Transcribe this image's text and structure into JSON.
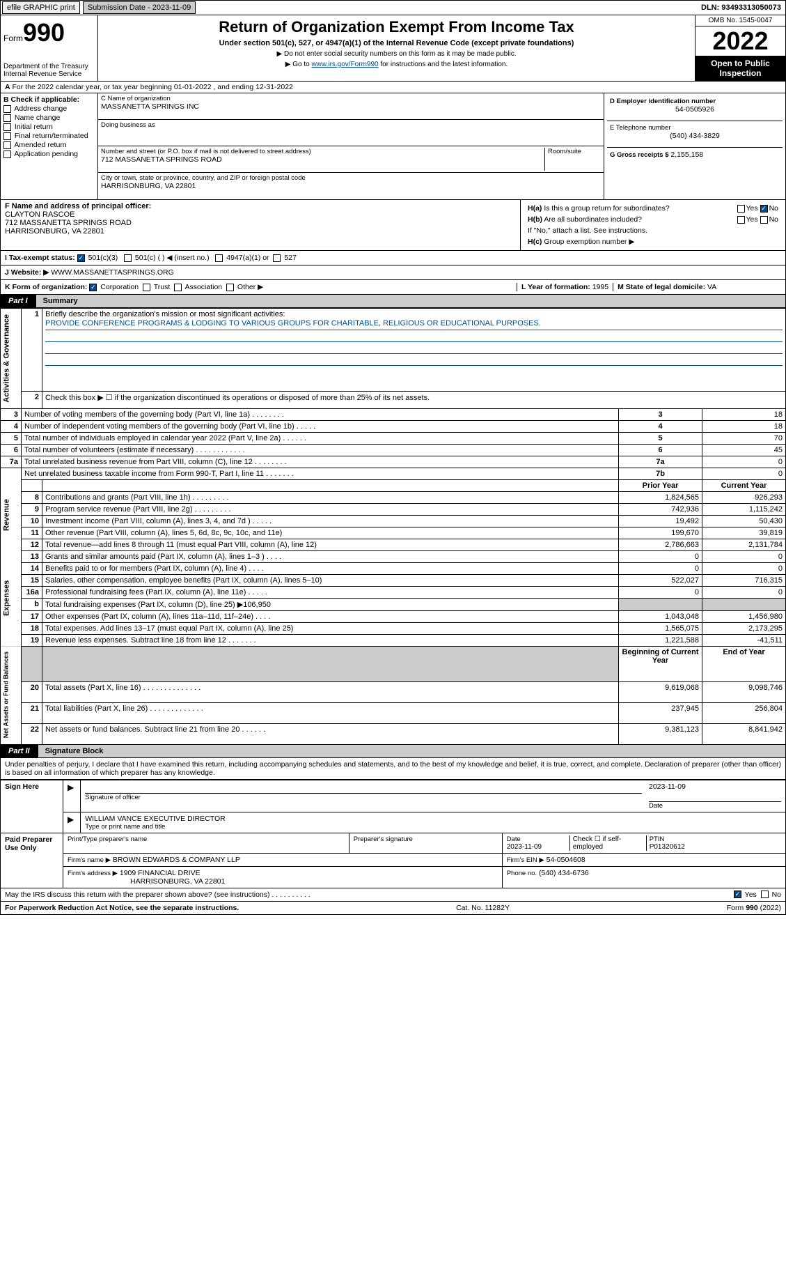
{
  "topbar": {
    "btn1": "efile GRAPHIC print",
    "sub_label": "Submission Date - 2023-11-09",
    "dln": "DLN: 93493313050073"
  },
  "header": {
    "form_label": "Form",
    "form_num": "990",
    "title": "Return of Organization Exempt From Income Tax",
    "sub": "Under section 501(c), 527, or 4947(a)(1) of the Internal Revenue Code (except private foundations)",
    "note1": "▶ Do not enter social security numbers on this form as it may be made public.",
    "note2_pre": "▶ Go to ",
    "note2_link": "www.irs.gov/Form990",
    "note2_post": " for instructions and the latest information.",
    "dept": "Department of the Treasury\nInternal Revenue Service",
    "omb": "OMB No. 1545-0047",
    "year": "2022",
    "inspect": "Open to Public Inspection"
  },
  "row_a": {
    "text": "For the 2022 calendar year, or tax year beginning 01-01-2022   , and ending 12-31-2022",
    "b_label": "B Check if applicable:",
    "b_items": [
      "Address change",
      "Name change",
      "Initial return",
      "Final return/terminated",
      "Amended return",
      "Application pending"
    ],
    "c_label": "C Name of organization",
    "c_name": "MASSANETTA SPRINGS INC",
    "dba_label": "Doing business as",
    "addr_label": "Number and street (or P.O. box if mail is not delivered to street address)",
    "room_label": "Room/suite",
    "addr": "712 MASSANETTA SPRINGS ROAD",
    "city_label": "City or town, state or province, country, and ZIP or foreign postal code",
    "city": "HARRISONBURG, VA  22801",
    "d_label": "D Employer identification number",
    "d_val": "54-0505926",
    "e_label": "E Telephone number",
    "e_val": "(540) 434-3829",
    "g_label": "G Gross receipts $",
    "g_val": "2,155,158"
  },
  "row_fh": {
    "f_label": "F  Name and address of principal officer:",
    "f_name": "CLAYTON RASCOE",
    "f_addr1": "712 MASSANETTA SPRINGS ROAD",
    "f_addr2": "HARRISONBURG, VA  22801",
    "ha_label": "H(a)  Is this a group return for subordinates?",
    "hb_label": "H(b)  Are all subordinates included?",
    "hb_note": "If \"No,\" attach a list. See instructions.",
    "hc_label": "H(c)  Group exemption number ▶",
    "yes": "Yes",
    "no": "No"
  },
  "row_i": {
    "label": "I   Tax-exempt status:",
    "opt1": "501(c)(3)",
    "opt2": "501(c) (  ) ◀ (insert no.)",
    "opt3": "4947(a)(1) or",
    "opt4": "527"
  },
  "row_j": {
    "label": "J   Website: ▶",
    "val": "WWW.MASSANETTASPRINGS.ORG"
  },
  "row_k": {
    "label": "K Form of organization:",
    "opts": [
      "Corporation",
      "Trust",
      "Association",
      "Other ▶"
    ],
    "l_label": "L Year of formation:",
    "l_val": "1995",
    "m_label": "M State of legal domicile:",
    "m_val": "VA"
  },
  "part1": {
    "tab": "Part I",
    "title": "Summary"
  },
  "summary": {
    "q1": "Briefly describe the organization's mission or most significant activities:",
    "mission": "PROVIDE CONFERENCE PROGRAMS & LODGING TO VARIOUS GROUPS FOR CHARITABLE, RELIGIOUS OR EDUCATIONAL PURPOSES.",
    "q2": "Check this box ▶ ☐  if the organization discontinued its operations or disposed of more than 25% of its net assets.",
    "rows_ag": [
      {
        "n": "3",
        "d": "Number of voting members of the governing body (Part VI, line 1a)  .    .    .    .    .    .    .    .",
        "b": "3",
        "v": "18"
      },
      {
        "n": "4",
        "d": "Number of independent voting members of the governing body (Part VI, line 1b)  .    .    .    .    .",
        "b": "4",
        "v": "18"
      },
      {
        "n": "5",
        "d": "Total number of individuals employed in calendar year 2022 (Part V, line 2a)  .    .    .    .    .    .",
        "b": "5",
        "v": "70"
      },
      {
        "n": "6",
        "d": "Total number of volunteers (estimate if necessary)  .    .    .    .    .    .    .    .    .    .    .    .",
        "b": "6",
        "v": "45"
      },
      {
        "n": "7a",
        "d": "Total unrelated business revenue from Part VIII, column (C), line 12  .    .    .    .    .    .    .    .",
        "b": "7a",
        "v": "0"
      },
      {
        "n": "",
        "d": "Net unrelated business taxable income from Form 990-T, Part I, line 11  .    .    .    .    .    .    .",
        "b": "7b",
        "v": "0"
      }
    ],
    "side_ag": "Activities & Governance",
    "hdr_prior": "Prior Year",
    "hdr_curr": "Current Year",
    "side_rev": "Revenue",
    "rows_rev": [
      {
        "n": "8",
        "d": "Contributions and grants (Part VIII, line 1h)  .    .    .    .    .    .    .    .    .",
        "p": "1,824,565",
        "c": "926,293"
      },
      {
        "n": "9",
        "d": "Program service revenue (Part VIII, line 2g)  .    .    .    .    .    .    .    .    .",
        "p": "742,936",
        "c": "1,115,242"
      },
      {
        "n": "10",
        "d": "Investment income (Part VIII, column (A), lines 3, 4, and 7d )  .    .    .    .    .",
        "p": "19,492",
        "c": "50,430"
      },
      {
        "n": "11",
        "d": "Other revenue (Part VIII, column (A), lines 5, 6d, 8c, 9c, 10c, and 11e)",
        "p": "199,670",
        "c": "39,819"
      },
      {
        "n": "12",
        "d": "Total revenue—add lines 8 through 11 (must equal Part VIII, column (A), line 12)",
        "p": "2,786,663",
        "c": "2,131,784"
      }
    ],
    "side_exp": "Expenses",
    "rows_exp": [
      {
        "n": "13",
        "d": "Grants and similar amounts paid (Part IX, column (A), lines 1–3 )  .    .    .    .",
        "p": "0",
        "c": "0"
      },
      {
        "n": "14",
        "d": "Benefits paid to or for members (Part IX, column (A), line 4)  .    .    .    .",
        "p": "0",
        "c": "0"
      },
      {
        "n": "15",
        "d": "Salaries, other compensation, employee benefits (Part IX, column (A), lines 5–10)",
        "p": "522,027",
        "c": "716,315"
      },
      {
        "n": "16a",
        "d": "Professional fundraising fees (Part IX, column (A), line 11e)  .    .    .    .    .",
        "p": "0",
        "c": "0"
      },
      {
        "n": "b",
        "d": "Total fundraising expenses (Part IX, column (D), line 25) ▶106,950",
        "p": "",
        "c": ""
      },
      {
        "n": "17",
        "d": "Other expenses (Part IX, column (A), lines 11a–11d, 11f–24e)  .    .    .    .",
        "p": "1,043,048",
        "c": "1,456,980"
      },
      {
        "n": "18",
        "d": "Total expenses. Add lines 13–17 (must equal Part IX, column (A), line 25)",
        "p": "1,565,075",
        "c": "2,173,295"
      },
      {
        "n": "19",
        "d": "Revenue less expenses. Subtract line 18 from line 12  .    .    .    .    .    .    .",
        "p": "1,221,588",
        "c": "-41,511"
      }
    ],
    "side_na": "Net Assets or Fund Balances",
    "hdr_beg": "Beginning of Current Year",
    "hdr_end": "End of Year",
    "rows_na": [
      {
        "n": "20",
        "d": "Total assets (Part X, line 16)  .    .    .    .    .    .    .    .    .    .    .    .    .    .",
        "p": "9,619,068",
        "c": "9,098,746"
      },
      {
        "n": "21",
        "d": "Total liabilities (Part X, line 26)  .    .    .    .    .    .    .    .    .    .    .    .    .",
        "p": "237,945",
        "c": "256,804"
      },
      {
        "n": "22",
        "d": "Net assets or fund balances. Subtract line 21 from line 20  .    .    .    .    .    .",
        "p": "9,381,123",
        "c": "8,841,942"
      }
    ]
  },
  "part2": {
    "tab": "Part II",
    "title": "Signature Block"
  },
  "sig": {
    "declare": "Under penalties of perjury, I declare that I have examined this return, including accompanying schedules and statements, and to the best of my knowledge and belief, it is true, correct, and complete. Declaration of preparer (other than officer) is based on all information of which preparer has any knowledge.",
    "sign_here": "Sign Here",
    "sig_officer": "Signature of officer",
    "date": "Date",
    "date_val": "2023-11-09",
    "name_title": "WILLIAM VANCE  EXECUTIVE DIRECTOR",
    "type_name": "Type or print name and title",
    "paid": "Paid Preparer Use Only",
    "prep_name_label": "Print/Type preparer's name",
    "prep_sig_label": "Preparer's signature",
    "prep_date": "2023-11-09",
    "check_if": "Check ☐ if self-employed",
    "ptin_label": "PTIN",
    "ptin": "P01320612",
    "firm_name_label": "Firm's name    ▶",
    "firm_name": "BROWN EDWARDS & COMPANY LLP",
    "firm_ein_label": "Firm's EIN ▶",
    "firm_ein": "54-0504608",
    "firm_addr_label": "Firm's address ▶",
    "firm_addr": "1909 FINANCIAL DRIVE",
    "firm_city": "HARRISONBURG, VA  22801",
    "phone_label": "Phone no.",
    "phone": "(540) 434-6736",
    "discuss": "May the IRS discuss this return with the preparer shown above? (see instructions)  .    .    .    .    .    .    .    .    .    .",
    "yes": "Yes",
    "no": "No"
  },
  "footer": {
    "left": "For Paperwork Reduction Act Notice, see the separate instructions.",
    "mid": "Cat. No. 11282Y",
    "right": "Form 990 (2022)"
  },
  "colors": {
    "link": "#004b8d",
    "shade": "#cccccc"
  }
}
